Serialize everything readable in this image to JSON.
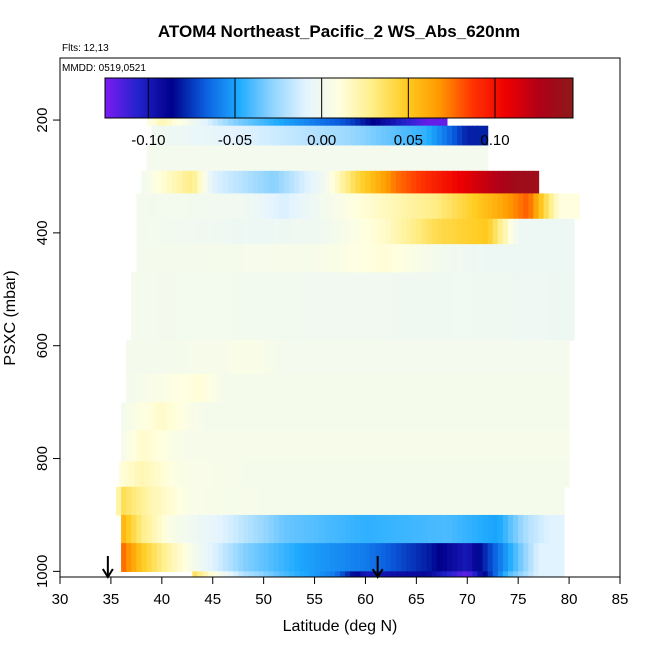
{
  "chart_data": {
    "type": "heatmap",
    "title": "ATOM4 Northeast_Pacific_2 WS_Abs_620nm",
    "notes": [
      "Flts: 12,13",
      "MMDD: 0519,0521"
    ],
    "xlabel": "Latitude (deg N)",
    "ylabel": "PSXC (mbar)",
    "xlim": [
      30,
      85
    ],
    "ylim": [
      1010,
      90
    ],
    "x_ticks": [
      "30",
      "35",
      "40",
      "45",
      "50",
      "55",
      "60",
      "65",
      "70",
      "75",
      "80",
      "85"
    ],
    "y_ticks": [
      "200",
      "400",
      "600",
      "800",
      "1000"
    ],
    "colorbar": {
      "range": [
        -0.125,
        0.145
      ],
      "ticks": [
        "-0.10",
        "-0.05",
        "0.00",
        "0.05",
        "0.10"
      ],
      "colors": [
        "#7b1cf2",
        "#2222cc",
        "#00008b",
        "#0b5fe0",
        "#1eaaff",
        "#8fd4ff",
        "#e4f4ff",
        "#ffffe0",
        "#ffee88",
        "#ffcc22",
        "#ff9900",
        "#ff3300",
        "#ee0000",
        "#b00018",
        "#8b1a1a"
      ]
    },
    "markers": [
      {
        "x": 34.7,
        "label": "flight marker"
      },
      {
        "x": 61.2,
        "label": "flight marker"
      }
    ],
    "rows": [
      {
        "p": [
          180,
          210
        ],
        "x": [
          38.5,
          68
        ],
        "segments": [
          [
            38.5,
            0.005
          ],
          [
            40,
            0.02
          ],
          [
            43,
            0.0
          ],
          [
            47,
            -0.03
          ],
          [
            52,
            -0.05
          ],
          [
            58,
            -0.07
          ],
          [
            63,
            -0.1
          ],
          [
            66,
            -0.12
          ]
        ]
      },
      {
        "p": [
          210,
          245
        ],
        "x": [
          39,
          72
        ],
        "segments": [
          [
            39,
            0.0
          ],
          [
            48,
            -0.01
          ],
          [
            58,
            -0.025
          ],
          [
            66,
            -0.045
          ],
          [
            70,
            -0.08
          ]
        ]
      },
      {
        "p": [
          245,
          290
        ],
        "x": [
          38.5,
          72
        ],
        "segments": [
          [
            38.5,
            0.002
          ],
          [
            72,
            0.002
          ]
        ]
      },
      {
        "p": [
          290,
          330
        ],
        "x": [
          38,
          77
        ],
        "segments": [
          [
            38,
            0.0
          ],
          [
            43,
            0.03
          ],
          [
            45,
            -0.01
          ],
          [
            51,
            -0.03
          ],
          [
            56,
            0.0
          ],
          [
            59,
            0.04
          ],
          [
            63,
            0.075
          ],
          [
            70,
            0.11
          ],
          [
            75,
            0.135
          ]
        ]
      },
      {
        "p": [
          330,
          375
        ],
        "x": [
          37.5,
          81
        ],
        "segments": [
          [
            37.5,
            0.002
          ],
          [
            48,
            0.0
          ],
          [
            52,
            -0.012
          ],
          [
            56,
            0.002
          ],
          [
            61,
            0.015
          ],
          [
            67,
            0.03
          ],
          [
            73,
            0.06
          ],
          [
            76,
            0.08
          ],
          [
            79,
            0.01
          ]
        ]
      },
      {
        "p": [
          375,
          420
        ],
        "x": [
          37.5,
          80.5
        ],
        "segments": [
          [
            37.5,
            0.002
          ],
          [
            50,
            -0.003
          ],
          [
            56,
            0.0
          ],
          [
            62,
            0.015
          ],
          [
            67,
            0.04
          ],
          [
            72,
            0.05
          ],
          [
            75,
            -0.003
          ]
        ]
      },
      {
        "p": [
          420,
          470
        ],
        "x": [
          37.5,
          80.5
        ],
        "segments": [
          [
            37.5,
            0.002
          ],
          [
            55,
            0.004
          ],
          [
            62,
            0.012
          ],
          [
            68,
            0.0
          ],
          [
            72,
            -0.003
          ]
        ]
      },
      {
        "p": [
          470,
          590
        ],
        "x": [
          37,
          80.5
        ],
        "segments": [
          [
            37,
            0.002
          ],
          [
            80.5,
            -0.002
          ]
        ]
      },
      {
        "p": [
          590,
          650
        ],
        "x": [
          36.5,
          80
        ],
        "segments": [
          [
            36.5,
            0.002
          ],
          [
            46,
            0.004
          ],
          [
            48,
            0.007
          ],
          [
            52,
            0.002
          ]
        ]
      },
      {
        "p": [
          650,
          700
        ],
        "x": [
          36.5,
          80
        ],
        "segments": [
          [
            36.5,
            0.002
          ],
          [
            44,
            0.012
          ],
          [
            46,
            0.003
          ]
        ]
      },
      {
        "p": [
          700,
          750
        ],
        "x": [
          36,
          80
        ],
        "segments": [
          [
            36,
            0.002
          ],
          [
            40,
            0.015
          ],
          [
            44,
            0.003
          ]
        ]
      },
      {
        "p": [
          750,
          805
        ],
        "x": [
          36,
          80
        ],
        "segments": [
          [
            36,
            0.002
          ],
          [
            38,
            0.015
          ],
          [
            42,
            0.004
          ]
        ]
      },
      {
        "p": [
          805,
          850
        ],
        "x": [
          35.8,
          80
        ],
        "segments": [
          [
            35.8,
            0.01
          ],
          [
            38,
            0.02
          ],
          [
            42,
            0.006
          ],
          [
            48,
            0.003
          ]
        ]
      },
      {
        "p": [
          850,
          900
        ],
        "x": [
          35.5,
          79.5
        ],
        "segments": [
          [
            35.5,
            0.005
          ],
          [
            36,
            0.04
          ],
          [
            39,
            0.02
          ],
          [
            43,
            0.005
          ],
          [
            50,
            0.003
          ]
        ]
      },
      {
        "p": [
          900,
          950
        ],
        "x": [
          36,
          79.5
        ],
        "segments": [
          [
            36,
            0.06
          ],
          [
            38,
            0.03
          ],
          [
            41,
            0.005
          ],
          [
            46,
            -0.01
          ],
          [
            52,
            -0.035
          ],
          [
            60,
            -0.045
          ],
          [
            68,
            -0.04
          ],
          [
            73,
            -0.05
          ],
          [
            76,
            -0.02
          ],
          [
            78,
            -0.01
          ]
        ]
      },
      {
        "p": [
          950,
          1000
        ],
        "x": [
          36,
          79.5
        ],
        "segments": [
          [
            36,
            0.08
          ],
          [
            38,
            0.05
          ],
          [
            41,
            0.02
          ],
          [
            44,
            -0.003
          ],
          [
            48,
            -0.03
          ],
          [
            54,
            -0.05
          ],
          [
            60,
            -0.06
          ],
          [
            66,
            -0.08
          ],
          [
            70,
            -0.1
          ],
          [
            74,
            -0.05
          ],
          [
            77,
            -0.01
          ]
        ]
      },
      {
        "p": [
          1000,
          1048
        ],
        "x": [
          43,
          79.5
        ],
        "segments": [
          [
            43,
            0.04
          ],
          [
            45,
            0.01
          ],
          [
            48,
            -0.02
          ],
          [
            52,
            -0.04
          ],
          [
            57,
            -0.06
          ],
          [
            60,
            -0.1
          ],
          [
            66,
            -0.09
          ],
          [
            70,
            -0.12
          ],
          [
            74,
            -0.04
          ],
          [
            77,
            -0.01
          ]
        ]
      }
    ],
    "grid": false,
    "legend": "colorbar top inside plot"
  }
}
